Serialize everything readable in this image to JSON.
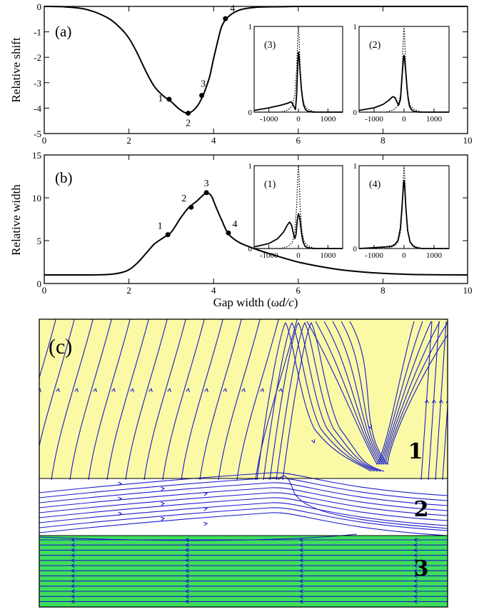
{
  "chart_data": [
    {
      "id": "a",
      "type": "line",
      "panel_label": "(a)",
      "ylabel": "Relative shift",
      "xlim": [
        0,
        10
      ],
      "ylim": [
        -5,
        0
      ],
      "xticks": [
        "0",
        "2",
        "4",
        "6",
        "8",
        "10"
      ],
      "yticks": [
        "0",
        "-1",
        "-2",
        "-3",
        "-4",
        "-5"
      ],
      "curve": {
        "x": [
          0,
          0.5,
          1.0,
          1.5,
          1.8,
          2.0,
          2.2,
          2.4,
          2.6,
          2.8,
          3.0,
          3.2,
          3.4,
          3.6,
          3.75,
          3.9,
          4.0,
          4.1,
          4.2,
          4.35,
          4.6,
          4.9,
          5.2,
          5.6,
          6,
          7,
          8,
          9,
          10
        ],
        "y": [
          0,
          -0.02,
          -0.12,
          -0.45,
          -0.85,
          -1.25,
          -1.85,
          -2.55,
          -3.15,
          -3.5,
          -3.75,
          -4.05,
          -4.2,
          -3.95,
          -3.5,
          -2.8,
          -2.05,
          -1.35,
          -0.75,
          -0.4,
          -0.15,
          -0.05,
          -0.02,
          -0.01,
          0,
          0,
          0,
          0,
          0
        ]
      },
      "points": [
        {
          "label": "1",
          "x": 2.95,
          "y": -3.65
        },
        {
          "label": "2",
          "x": 3.4,
          "y": -4.2
        },
        {
          "label": "3",
          "x": 3.72,
          "y": -3.5
        },
        {
          "label": "4",
          "x": 4.28,
          "y": -0.48
        }
      ],
      "insets": [
        {
          "label": "(3)",
          "type": "line",
          "xlim": [
            -1500,
            1500
          ],
          "ylim": [
            0,
            1
          ],
          "xticks": [
            "-1000",
            "0",
            "1000"
          ],
          "yticks": [
            "0",
            "1"
          ],
          "solid": {
            "x": [
              -1500,
              -1000,
              -600,
              -400,
              -250,
              -200,
              -150,
              -100,
              -60,
              -20,
              0,
              20,
              60,
              100,
              140,
              180,
              240,
              320,
              500,
              1000,
              1500
            ],
            "y": [
              0.02,
              0.05,
              0.08,
              0.1,
              0.12,
              0.1,
              0.06,
              0.03,
              0.2,
              0.58,
              0.7,
              0.67,
              0.46,
              0.28,
              0.16,
              0.08,
              0.03,
              0.01,
              0,
              0,
              0
            ]
          },
          "dotted": {
            "x": [
              -1500,
              -1000,
              -600,
              -400,
              -300,
              -200,
              -120,
              -60,
              -20,
              0,
              20,
              60,
              120,
              200,
              300,
              400,
              600,
              1000,
              1500
            ],
            "y": [
              0,
              0,
              0,
              0.02,
              0.04,
              0.08,
              0.2,
              0.5,
              0.9,
              1.0,
              0.9,
              0.5,
              0.2,
              0.08,
              0.04,
              0.02,
              0,
              0,
              0
            ]
          }
        },
        {
          "label": "(2)",
          "type": "line",
          "xlim": [
            -1500,
            1500
          ],
          "ylim": [
            0,
            1
          ],
          "xticks": [
            "-1000",
            "0",
            "1000"
          ],
          "yticks": [
            "0",
            "1"
          ],
          "solid": {
            "x": [
              -1500,
              -1000,
              -700,
              -500,
              -380,
              -300,
              -240,
              -180,
              -120,
              -60,
              -20,
              0,
              20,
              60,
              100,
              140,
              180,
              240,
              320,
              500,
              1000,
              1500
            ],
            "y": [
              0.02,
              0.05,
              0.09,
              0.14,
              0.18,
              0.17,
              0.12,
              0.08,
              0.15,
              0.45,
              0.63,
              0.66,
              0.62,
              0.46,
              0.28,
              0.15,
              0.07,
              0.03,
              0.01,
              0,
              0,
              0
            ]
          },
          "dotted": {
            "x": [
              -1500,
              -1000,
              -600,
              -400,
              -300,
              -200,
              -120,
              -60,
              -20,
              0,
              20,
              60,
              120,
              200,
              300,
              400,
              600,
              1000,
              1500
            ],
            "y": [
              0,
              0,
              0,
              0.02,
              0.04,
              0.08,
              0.2,
              0.5,
              0.9,
              1.0,
              0.9,
              0.5,
              0.2,
              0.08,
              0.04,
              0.02,
              0,
              0,
              0
            ]
          }
        }
      ]
    },
    {
      "id": "b",
      "type": "line",
      "panel_label": "(b)",
      "ylabel": "Relative width",
      "xlabel": "Gap width (ωd/c)",
      "xlabel_parts": {
        "pre": "Gap width (ω",
        "it": "d/c",
        "post": ")"
      },
      "xlim": [
        0,
        10
      ],
      "ylim": [
        0,
        15
      ],
      "xticks": [
        "0",
        "2",
        "4",
        "6",
        "8",
        "10"
      ],
      "yticks": [
        "0",
        "5",
        "10",
        "15"
      ],
      "curve": {
        "x": [
          0,
          1.0,
          1.5,
          1.8,
          2.0,
          2.2,
          2.4,
          2.6,
          2.8,
          3.0,
          3.2,
          3.4,
          3.6,
          3.75,
          3.85,
          3.95,
          4.05,
          4.2,
          4.35,
          4.6,
          5.0,
          5.5,
          6.0,
          6.5,
          7.0,
          7.5,
          8.0,
          8.5,
          9.0,
          10.0
        ],
        "y": [
          1.0,
          1.0,
          1.05,
          1.25,
          1.6,
          2.4,
          3.5,
          4.6,
          5.3,
          6.0,
          7.5,
          8.8,
          9.6,
          10.3,
          10.55,
          10.2,
          9.0,
          7.3,
          5.8,
          4.8,
          4.0,
          3.2,
          2.5,
          2.0,
          1.6,
          1.35,
          1.18,
          1.08,
          1.03,
          1.0
        ]
      },
      "points": [
        {
          "label": "1",
          "x": 2.92,
          "y": 5.7
        },
        {
          "label": "2",
          "x": 3.47,
          "y": 8.9
        },
        {
          "label": "3",
          "x": 3.83,
          "y": 10.6
        },
        {
          "label": "4",
          "x": 4.35,
          "y": 5.9
        }
      ],
      "insets": [
        {
          "label": "(1)",
          "type": "line",
          "xlim": [
            -1500,
            1500
          ],
          "ylim": [
            0,
            1
          ],
          "xticks": [
            "-1000",
            "0",
            "1000"
          ],
          "yticks": [
            "0",
            "1"
          ],
          "solid": {
            "x": [
              -1500,
              -1000,
              -700,
              -500,
              -380,
              -300,
              -230,
              -170,
              -120,
              -80,
              -40,
              0,
              40,
              80,
              120,
              160,
              220,
              300,
              500,
              1000,
              1500
            ],
            "y": [
              0.02,
              0.06,
              0.12,
              0.2,
              0.28,
              0.32,
              0.28,
              0.18,
              0.12,
              0.17,
              0.33,
              0.42,
              0.38,
              0.26,
              0.15,
              0.08,
              0.03,
              0.01,
              0,
              0,
              0
            ]
          },
          "dotted": {
            "x": [
              -1500,
              -1000,
              -600,
              -400,
              -300,
              -200,
              -120,
              -60,
              -20,
              0,
              20,
              60,
              120,
              200,
              300,
              400,
              600,
              1000,
              1500
            ],
            "y": [
              0,
              0,
              0,
              0.02,
              0.04,
              0.08,
              0.2,
              0.5,
              0.9,
              1.0,
              0.9,
              0.5,
              0.2,
              0.08,
              0.04,
              0.02,
              0,
              0,
              0
            ]
          }
        },
        {
          "label": "(4)",
          "type": "line",
          "xlim": [
            -1500,
            1500
          ],
          "ylim": [
            0,
            1
          ],
          "xticks": [
            "-1000",
            "0",
            "1000"
          ],
          "yticks": [
            "0",
            "1"
          ],
          "solid": {
            "x": [
              -1500,
              -1000,
              -600,
              -400,
              -300,
              -200,
              -120,
              -60,
              -20,
              0,
              20,
              60,
              120,
              200,
              300,
              400,
              600,
              1000,
              1500
            ],
            "y": [
              0,
              0.01,
              0.02,
              0.03,
              0.05,
              0.1,
              0.25,
              0.55,
              0.78,
              0.82,
              0.76,
              0.5,
              0.22,
              0.08,
              0.03,
              0.01,
              0,
              0,
              0
            ]
          },
          "dotted": {
            "x": [
              -1500,
              -1000,
              -600,
              -400,
              -300,
              -200,
              -120,
              -60,
              -20,
              0,
              20,
              60,
              120,
              200,
              300,
              400,
              600,
              1000,
              1500
            ],
            "y": [
              0,
              0,
              0,
              0.02,
              0.04,
              0.08,
              0.2,
              0.5,
              0.9,
              1.0,
              0.9,
              0.5,
              0.2,
              0.08,
              0.04,
              0.02,
              0,
              0,
              0
            ]
          }
        }
      ]
    },
    {
      "id": "c",
      "type": "streamlines",
      "panel_label": "(c)",
      "zones": [
        {
          "label": "1",
          "color": "#fafaa6"
        },
        {
          "label": "2",
          "color": "#ffffff"
        },
        {
          "label": "3",
          "color": "#3ede5a"
        }
      ],
      "line_color": "#1a1acd"
    }
  ]
}
